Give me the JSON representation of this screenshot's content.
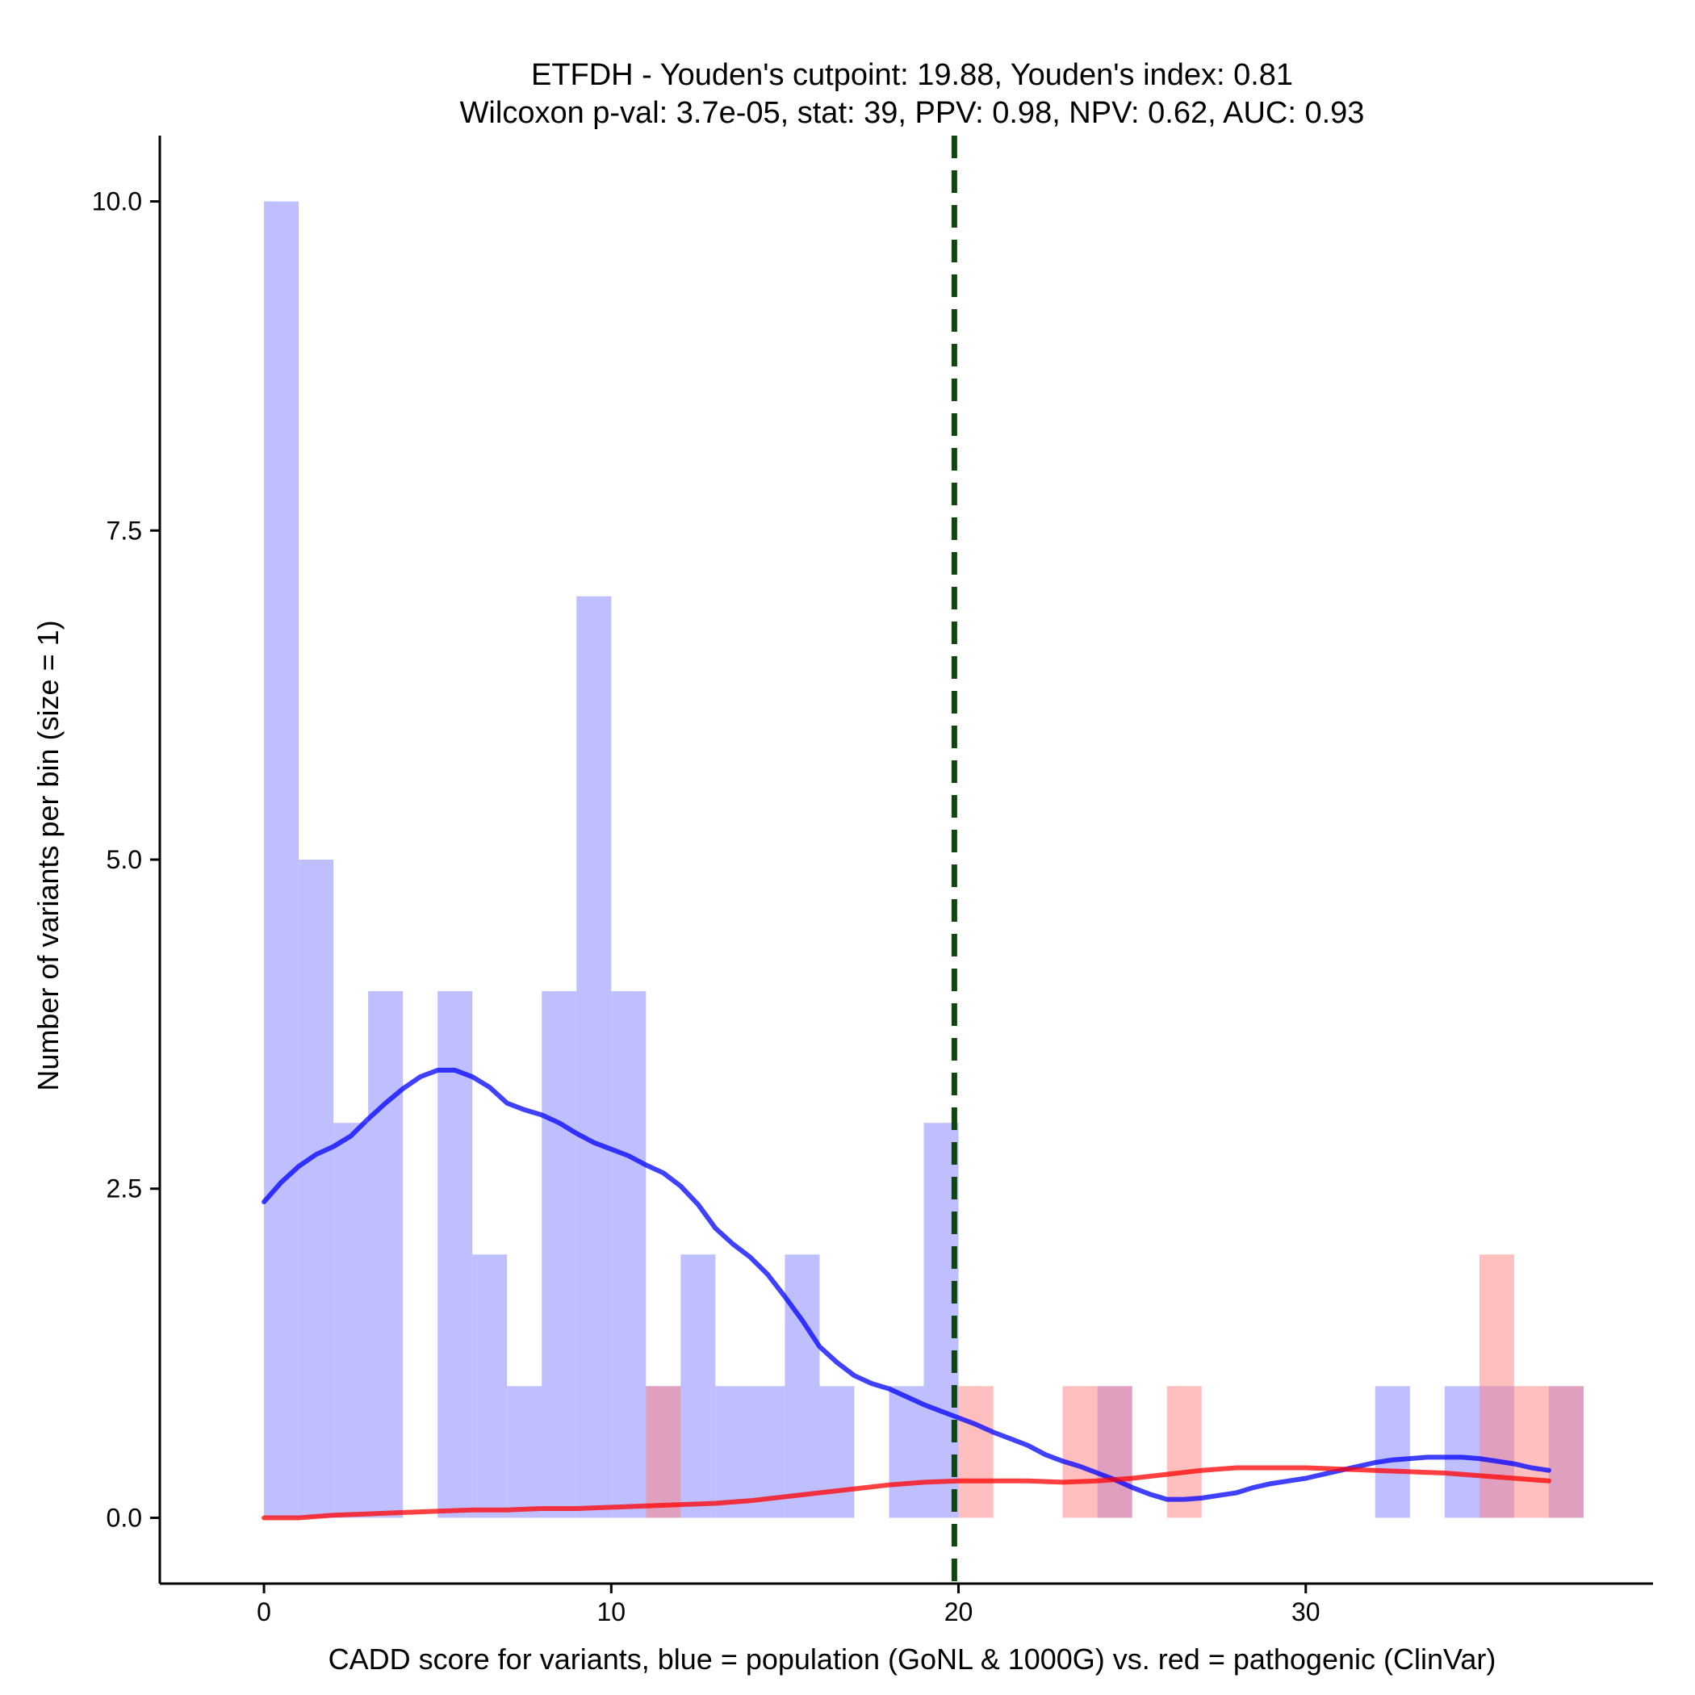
{
  "chart_data": {
    "type": "bar",
    "title": "ETFDH - Youden's cutpoint: 19.88, Youden's index: 0.81",
    "subtitle": "Wilcoxon p-val: 3.7e-05, stat: 39, PPV: 0.98, NPV: 0.62, AUC: 0.93",
    "xlabel": "CADD score for variants, blue = population (GoNL & 1000G) vs. red = pathogenic (ClinVar)",
    "ylabel": "Number of variants per bin (size = 1)",
    "xlim": [
      -3,
      40
    ],
    "ylim": [
      -0.5,
      10.5
    ],
    "x_ticks": [
      0,
      10,
      20,
      30
    ],
    "x_tick_labels": [
      "0",
      "10",
      "20",
      "30"
    ],
    "y_ticks": [
      0,
      2.5,
      5,
      7.5,
      10
    ],
    "y_tick_labels": [
      "0.0",
      "2.5",
      "5.0",
      "7.5",
      "10.0"
    ],
    "bin_width": 1,
    "cutpoint": 19.88,
    "colors": {
      "population_bar": "#8080ff",
      "pathogenic_bar": "#ff8080",
      "population_line": "#0000ff",
      "pathogenic_line": "#ff0000",
      "cutpoint_line": "#0b4a0b",
      "axis": "#000000"
    },
    "series": [
      {
        "name": "population (GoNL & 1000G)",
        "color": "#8080ff",
        "bins": [
          [
            0,
            10
          ],
          [
            1,
            5
          ],
          [
            2,
            3
          ],
          [
            3,
            4
          ],
          [
            5,
            4
          ],
          [
            6,
            2
          ],
          [
            7,
            1
          ],
          [
            8,
            4
          ],
          [
            9,
            7
          ],
          [
            10,
            4
          ],
          [
            11,
            1
          ],
          [
            12,
            2
          ],
          [
            13,
            1
          ],
          [
            14,
            1
          ],
          [
            15,
            2
          ],
          [
            16,
            1
          ],
          [
            18,
            1
          ],
          [
            19,
            3
          ],
          [
            24,
            1
          ],
          [
            32,
            1
          ],
          [
            34,
            1
          ],
          [
            35,
            1
          ],
          [
            37,
            1
          ]
        ]
      },
      {
        "name": "pathogenic (ClinVar)",
        "color": "#ff8080",
        "bins": [
          [
            11,
            1
          ],
          [
            20,
            1
          ],
          [
            23,
            1
          ],
          [
            24,
            1
          ],
          [
            26,
            1
          ],
          [
            35,
            2
          ],
          [
            36,
            1
          ],
          [
            37,
            1
          ]
        ]
      }
    ],
    "density_lines": [
      {
        "name": "population density",
        "color": "#0000ff",
        "points": [
          [
            0,
            2.4
          ],
          [
            0.5,
            2.55
          ],
          [
            1,
            2.67
          ],
          [
            1.5,
            2.76
          ],
          [
            2,
            2.82
          ],
          [
            2.5,
            2.9
          ],
          [
            3,
            3.03
          ],
          [
            3.5,
            3.15
          ],
          [
            4,
            3.26
          ],
          [
            4.5,
            3.35
          ],
          [
            5,
            3.4
          ],
          [
            5.5,
            3.4
          ],
          [
            6,
            3.35
          ],
          [
            6.5,
            3.27
          ],
          [
            7,
            3.15
          ],
          [
            7.5,
            3.1
          ],
          [
            8,
            3.06
          ],
          [
            8.5,
            3.0
          ],
          [
            9,
            2.92
          ],
          [
            9.5,
            2.85
          ],
          [
            10,
            2.8
          ],
          [
            10.5,
            2.75
          ],
          [
            11,
            2.68
          ],
          [
            11.5,
            2.62
          ],
          [
            12,
            2.52
          ],
          [
            12.5,
            2.38
          ],
          [
            13,
            2.2
          ],
          [
            13.5,
            2.08
          ],
          [
            14,
            1.98
          ],
          [
            14.5,
            1.85
          ],
          [
            15,
            1.68
          ],
          [
            15.5,
            1.5
          ],
          [
            16,
            1.3
          ],
          [
            16.5,
            1.18
          ],
          [
            17,
            1.08
          ],
          [
            17.5,
            1.02
          ],
          [
            18,
            0.98
          ],
          [
            18.5,
            0.92
          ],
          [
            19,
            0.86
          ],
          [
            19.5,
            0.81
          ],
          [
            20,
            0.76
          ],
          [
            20.5,
            0.71
          ],
          [
            21,
            0.65
          ],
          [
            21.5,
            0.6
          ],
          [
            22,
            0.55
          ],
          [
            22.5,
            0.48
          ],
          [
            23,
            0.43
          ],
          [
            23.5,
            0.39
          ],
          [
            24,
            0.34
          ],
          [
            24.5,
            0.29
          ],
          [
            25,
            0.23
          ],
          [
            25.5,
            0.18
          ],
          [
            26,
            0.14
          ],
          [
            26.5,
            0.14
          ],
          [
            27,
            0.15
          ],
          [
            27.5,
            0.17
          ],
          [
            28,
            0.19
          ],
          [
            28.5,
            0.23
          ],
          [
            29,
            0.26
          ],
          [
            29.5,
            0.28
          ],
          [
            30,
            0.3
          ],
          [
            30.5,
            0.33
          ],
          [
            31,
            0.36
          ],
          [
            31.5,
            0.39
          ],
          [
            32,
            0.42
          ],
          [
            32.5,
            0.44
          ],
          [
            33,
            0.45
          ],
          [
            33.5,
            0.46
          ],
          [
            34,
            0.46
          ],
          [
            34.5,
            0.46
          ],
          [
            35,
            0.45
          ],
          [
            35.5,
            0.43
          ],
          [
            36,
            0.41
          ],
          [
            36.5,
            0.38
          ],
          [
            37,
            0.36
          ]
        ]
      },
      {
        "name": "pathogenic density",
        "color": "#ff0000",
        "points": [
          [
            0,
            0
          ],
          [
            1,
            0
          ],
          [
            2,
            0.02
          ],
          [
            3,
            0.03
          ],
          [
            4,
            0.04
          ],
          [
            5,
            0.05
          ],
          [
            6,
            0.06
          ],
          [
            7,
            0.06
          ],
          [
            8,
            0.07
          ],
          [
            9,
            0.07
          ],
          [
            10,
            0.08
          ],
          [
            11,
            0.09
          ],
          [
            12,
            0.1
          ],
          [
            13,
            0.11
          ],
          [
            14,
            0.13
          ],
          [
            15,
            0.16
          ],
          [
            16,
            0.19
          ],
          [
            17,
            0.22
          ],
          [
            18,
            0.25
          ],
          [
            19,
            0.27
          ],
          [
            20,
            0.28
          ],
          [
            21,
            0.28
          ],
          [
            22,
            0.28
          ],
          [
            23,
            0.27
          ],
          [
            24,
            0.28
          ],
          [
            25,
            0.3
          ],
          [
            26,
            0.33
          ],
          [
            27,
            0.36
          ],
          [
            28,
            0.38
          ],
          [
            29,
            0.38
          ],
          [
            30,
            0.38
          ],
          [
            31,
            0.37
          ],
          [
            32,
            0.36
          ],
          [
            33,
            0.35
          ],
          [
            34,
            0.34
          ],
          [
            35,
            0.32
          ],
          [
            36,
            0.3
          ],
          [
            37,
            0.28
          ]
        ]
      }
    ]
  }
}
